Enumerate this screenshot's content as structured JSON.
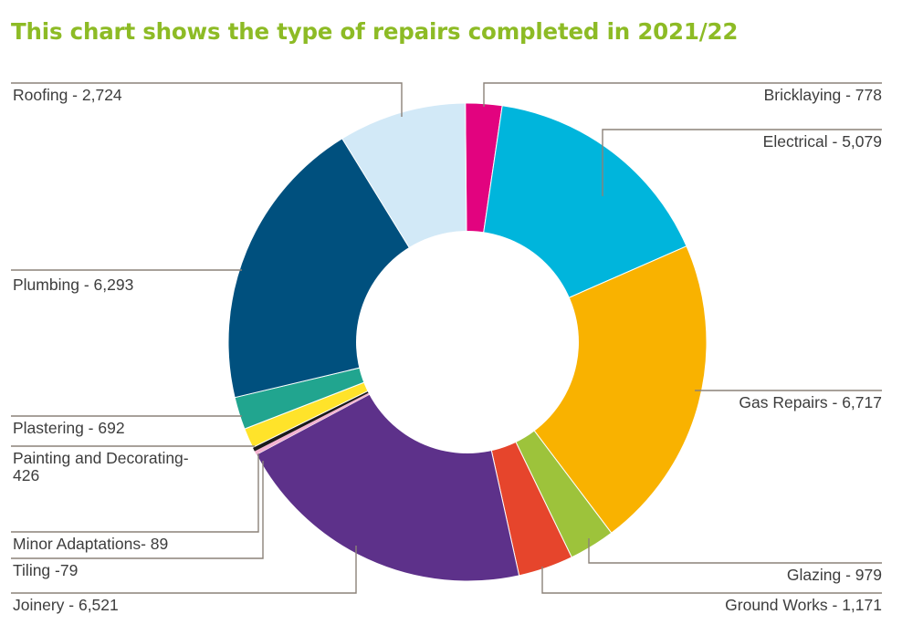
{
  "title": "This chart shows the type of repairs completed in 2021/22",
  "chart_data": {
    "type": "pie",
    "variant": "donut",
    "title": "This chart shows the type of repairs completed in 2021/22",
    "categories": [
      "Bricklaying",
      "Electrical",
      "Gas Repairs",
      "Glazing",
      "Ground Works",
      "Joinery",
      "Tiling",
      "Minor Adaptations",
      "Painting and Decorating",
      "Plastering",
      "Plumbing",
      "Roofing"
    ],
    "values": [
      778,
      5079,
      6717,
      979,
      1171,
      6521,
      79,
      89,
      426,
      692,
      6293,
      2724
    ],
    "colors": [
      "#e2037f",
      "#00b5dc",
      "#f9b200",
      "#9dc33b",
      "#e6452c",
      "#5d318a",
      "#f4b3d0",
      "#1a1a1a",
      "#ffe32a",
      "#21a58f",
      "#00507e",
      "#d2e9f7"
    ],
    "labels": [
      "Bricklaying - 778",
      "Electrical - 5,079",
      "Gas Repairs - 6,717",
      "Glazing - 979",
      "Ground Works - 1,171",
      "Joinery - 6,521",
      "Tiling -79",
      "Minor Adaptations- 89",
      [
        "Painting and Decorating-",
        "426"
      ],
      "Plastering - 692",
      "Plumbing - 6,293",
      "Roofing  - 2,724"
    ],
    "legend": "none"
  }
}
